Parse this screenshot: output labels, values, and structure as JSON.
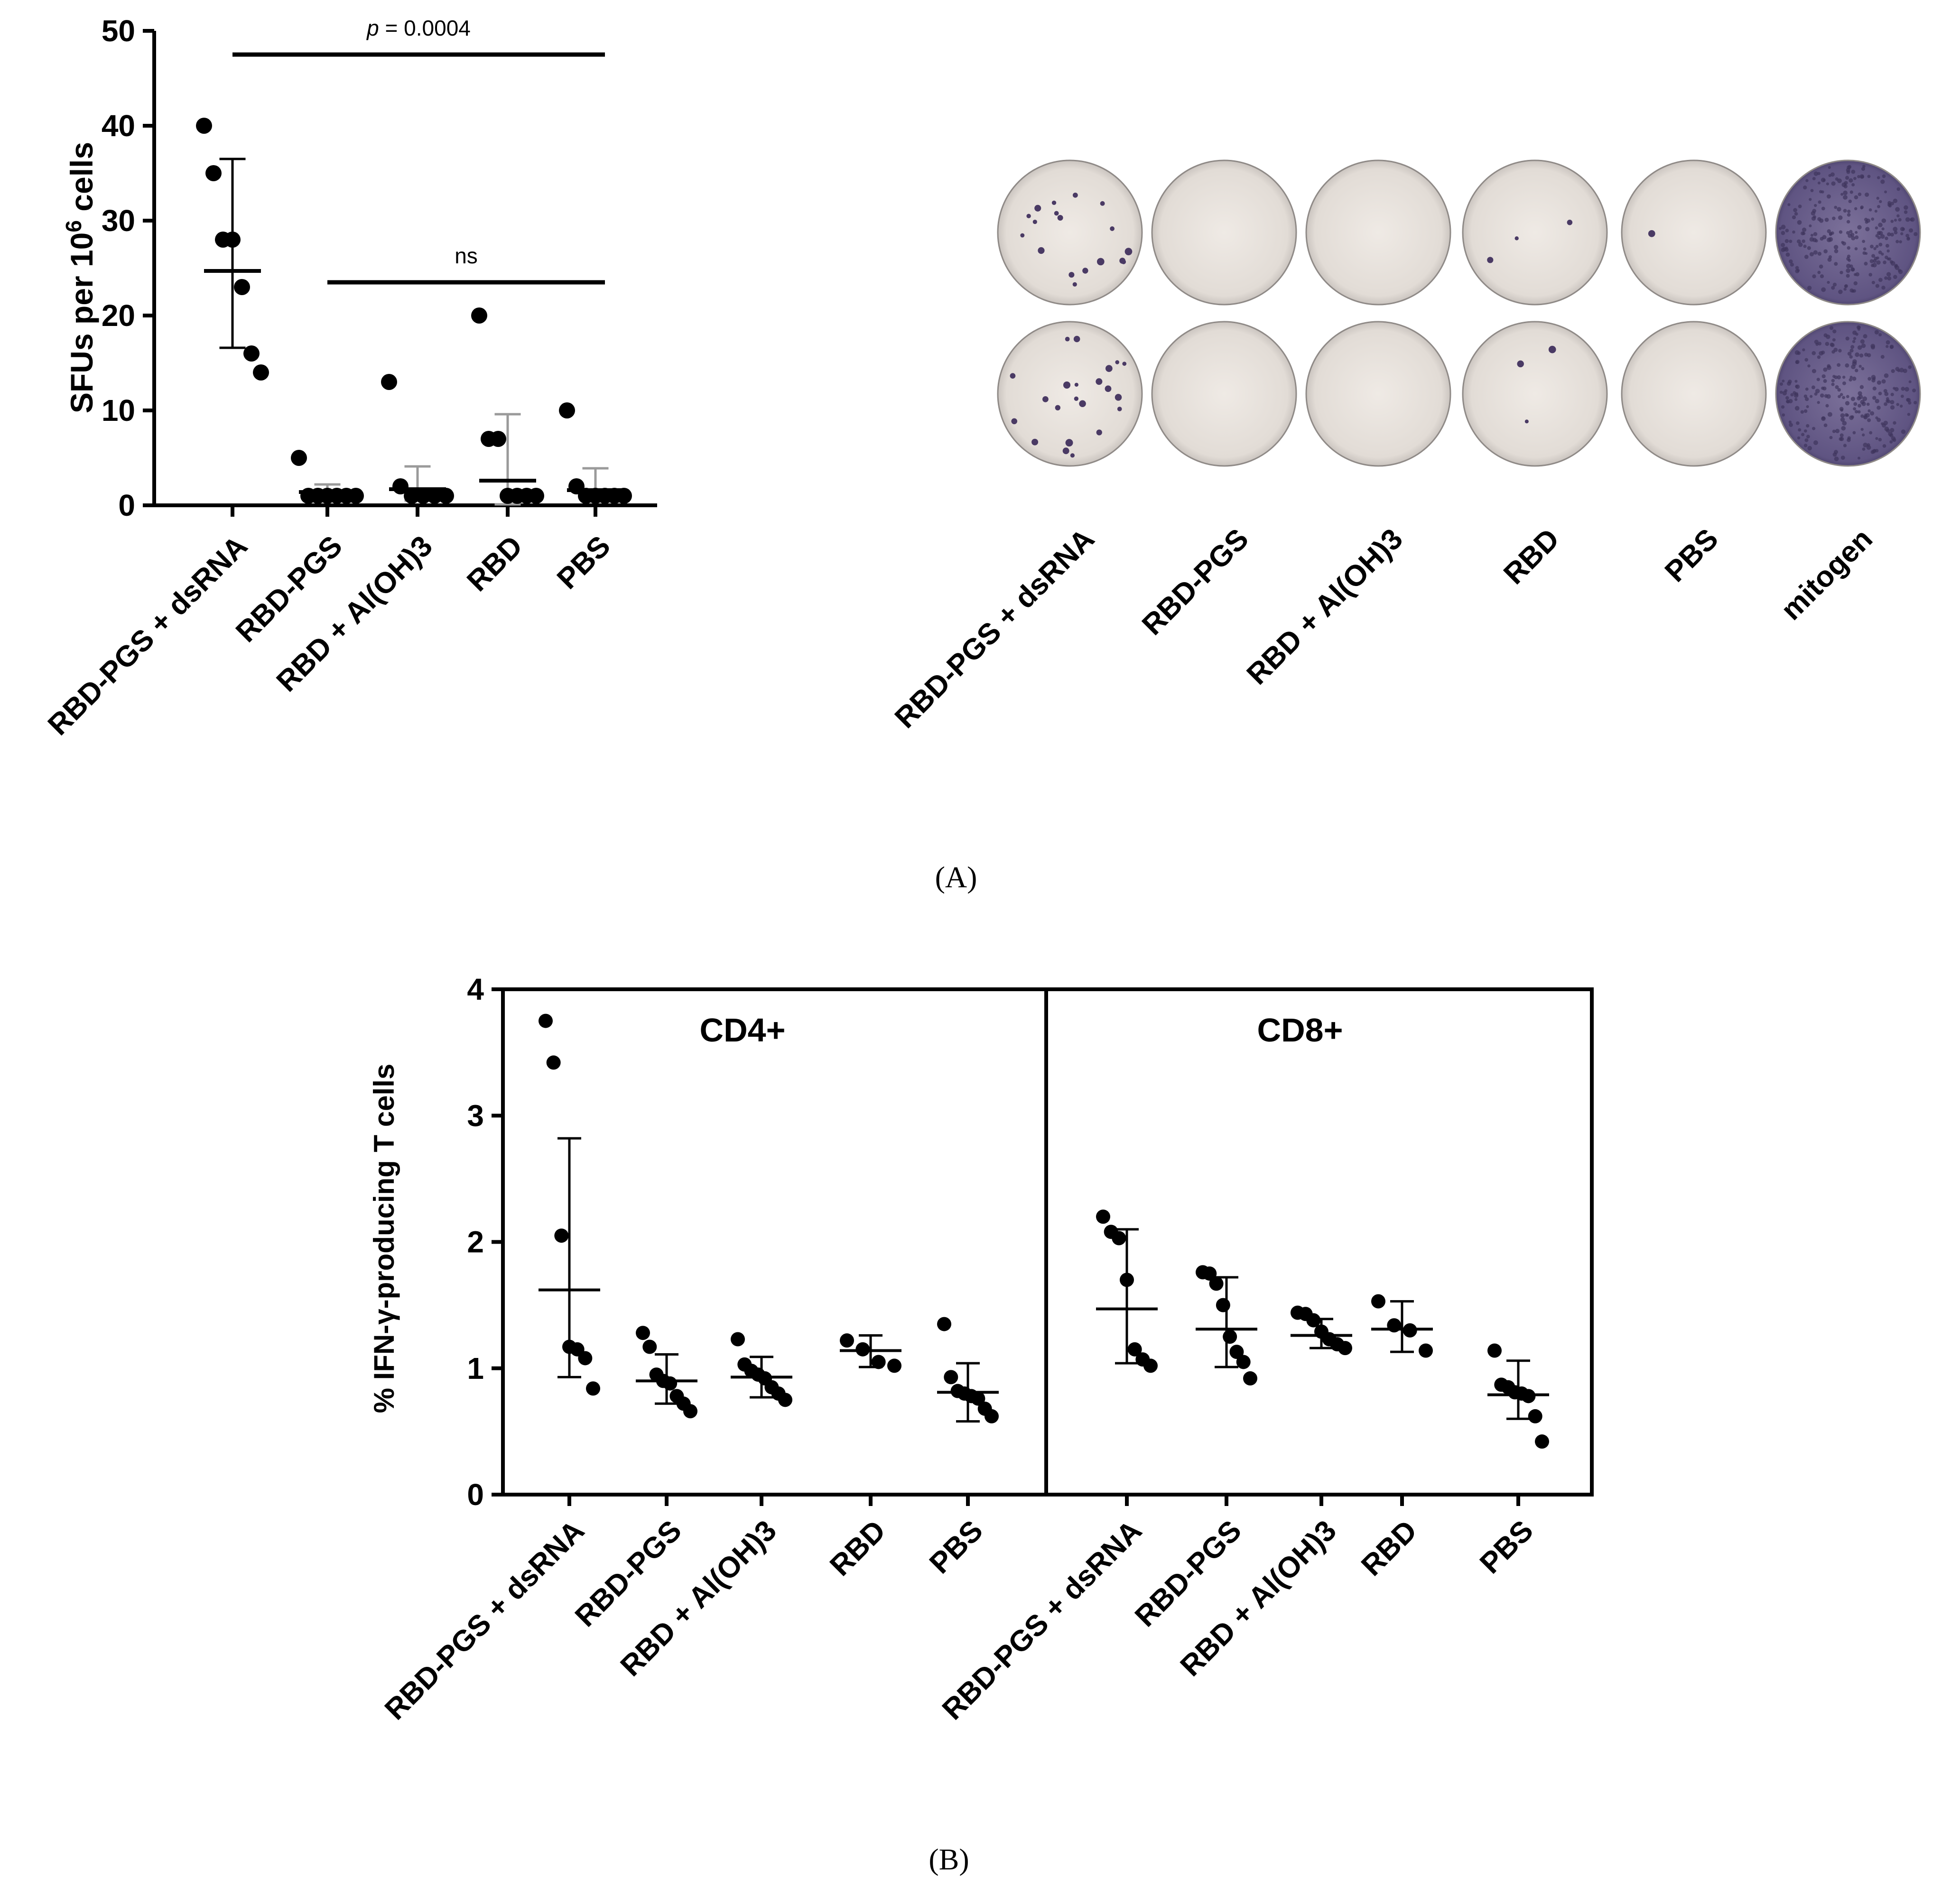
{
  "chart_data": [
    {
      "panel_label": "A",
      "type": "scatter",
      "ylabel_prefix": "SFUs per 10",
      "ylabel_superscript": "6",
      "ylabel_suffix": " cells",
      "ylim": [
        0,
        50
      ],
      "yticks": [
        "0",
        "10",
        "20",
        "30",
        "40",
        "50"
      ],
      "ytick_values": [
        0,
        10,
        20,
        30,
        40,
        50
      ],
      "categories": [
        "RBD-PGS + dsRNA",
        "RBD-PGS",
        "RBD + Al(OH)3",
        "RBD",
        "PBS"
      ],
      "points": [
        [
          40,
          35,
          28,
          28,
          23,
          16,
          14
        ],
        [
          5,
          1,
          1,
          1,
          1,
          1,
          1
        ],
        [
          13,
          2,
          1,
          1,
          1,
          1
        ],
        [
          20,
          7,
          7,
          1,
          1,
          1,
          1
        ],
        [
          10,
          2,
          1,
          1,
          1,
          1,
          1
        ]
      ],
      "means": [
        24.7,
        1.4,
        1.7,
        2.6,
        1.6
      ],
      "sd_lower": [
        16.6,
        0.5,
        0.5,
        0.1,
        0.5
      ],
      "sd_upper": [
        36.5,
        2.2,
        4.1,
        9.6,
        3.9
      ],
      "annotations": [
        {
          "label_prefix": "p",
          "label_suffix": " = 0.0004",
          "from_category": 0,
          "to_category": 4,
          "y": 47.5
        },
        {
          "label": "ns",
          "from_category": 1,
          "to_category": 4,
          "y": 23.5
        }
      ]
    },
    {
      "panel_label": "A",
      "type": "image-row",
      "description": "ELISpot wells",
      "well_labels": [
        "RBD-PGS + dsRNA",
        "RBD-PGS",
        "RBD + Al(OH)3",
        "RBD",
        "PBS",
        "mitogen"
      ],
      "spots_per_well_row1": [
        18,
        0,
        0,
        3,
        1,
        999
      ],
      "spots_per_well_row2": [
        22,
        0,
        0,
        3,
        0,
        999
      ]
    },
    {
      "panel_label": "B",
      "type": "scatter",
      "ylabel": "% IFN-γ-producing T cells",
      "ylim": [
        0,
        4
      ],
      "yticks": [
        "0",
        "1",
        "2",
        "3",
        "4"
      ],
      "ytick_values": [
        0,
        1,
        2,
        3,
        4
      ],
      "facets": [
        {
          "title": "CD4+",
          "categories": [
            "RBD-PGS + dsRNA",
            "RBD-PGS",
            "RBD + Al(OH)3",
            "RBD",
            "PBS"
          ],
          "points": [
            [
              3.75,
              3.42,
              2.05,
              1.17,
              1.15,
              1.08,
              0.84
            ],
            [
              1.28,
              1.17,
              0.95,
              0.9,
              0.88,
              0.78,
              0.72,
              0.66
            ],
            [
              1.23,
              1.03,
              0.98,
              0.95,
              0.92,
              0.85,
              0.8,
              0.75
            ],
            [
              1.22,
              1.15,
              1.05,
              1.02
            ],
            [
              1.35,
              0.93,
              0.82,
              0.8,
              0.78,
              0.76,
              0.68,
              0.62
            ]
          ],
          "means": [
            1.62,
            0.9,
            0.93,
            1.14,
            0.81
          ],
          "sd_lower": [
            0.93,
            0.72,
            0.77,
            1.01,
            0.58
          ],
          "sd_upper": [
            2.82,
            1.11,
            1.09,
            1.26,
            1.04
          ]
        },
        {
          "title": "CD8+",
          "categories": [
            "RBD-PGS + dsRNA",
            "RBD-PGS",
            "RBD + Al(OH)3",
            "RBD",
            "PBS"
          ],
          "points": [
            [
              2.2,
              2.08,
              2.03,
              1.7,
              1.15,
              1.07,
              1.02
            ],
            [
              1.76,
              1.75,
              1.67,
              1.5,
              1.25,
              1.13,
              1.05,
              0.92
            ],
            [
              1.44,
              1.43,
              1.38,
              1.29,
              1.23,
              1.19,
              1.16
            ],
            [
              1.53,
              1.34,
              1.3,
              1.14
            ],
            [
              1.14,
              0.87,
              0.85,
              0.81,
              0.8,
              0.78,
              0.62,
              0.42
            ]
          ],
          "means": [
            1.47,
            1.31,
            1.26,
            1.31,
            0.79
          ],
          "sd_lower": [
            1.04,
            1.01,
            1.16,
            1.13,
            0.6
          ],
          "sd_upper": [
            2.1,
            1.72,
            1.39,
            1.53,
            1.06
          ]
        }
      ]
    }
  ],
  "captions": {
    "a": "(A)",
    "b": "(B)"
  },
  "colors": {
    "ink": "#000000",
    "errorbar_gray": "#9a9a9a",
    "well_background": "#e9e4df",
    "spot": "#4a3a64",
    "mitogen": "#6b5f8a"
  }
}
